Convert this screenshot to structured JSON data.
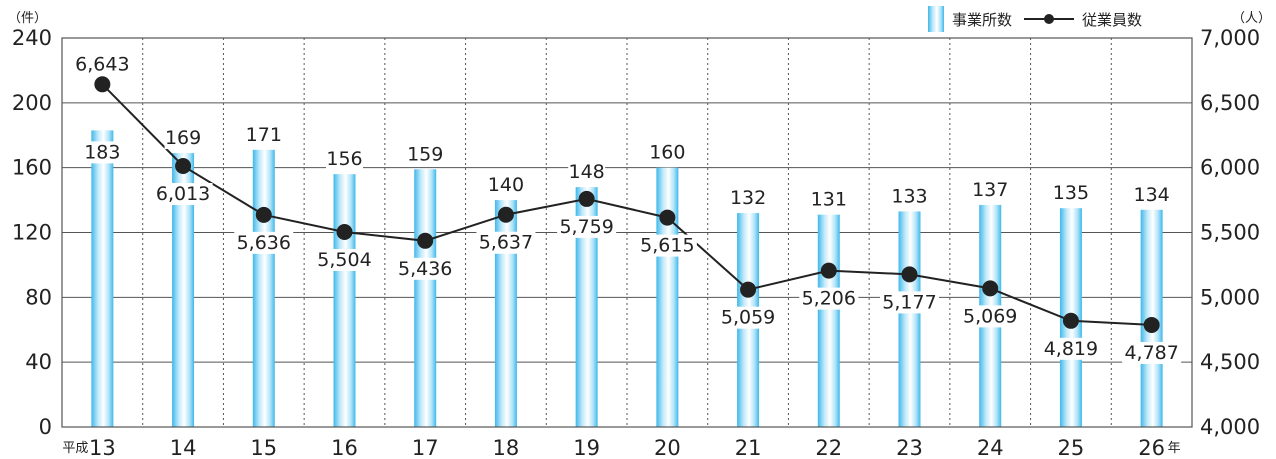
{
  "chart_data": {
    "type": "bar",
    "categories": [
      "13",
      "14",
      "15",
      "16",
      "17",
      "18",
      "19",
      "20",
      "21",
      "22",
      "23",
      "24",
      "25",
      "26"
    ],
    "x_prefix": "平成",
    "x_suffix": "年",
    "y_left": {
      "unit": "（件）",
      "ticks": [
        "0",
        "40",
        "80",
        "120",
        "160",
        "200",
        "240"
      ],
      "ylim": [
        0,
        240
      ]
    },
    "y_right": {
      "unit": "（人）",
      "ticks": [
        "4,000",
        "4,500",
        "5,000",
        "5,500",
        "6,000",
        "6,500",
        "7,000"
      ],
      "ylim": [
        4000,
        7000
      ]
    },
    "series": [
      {
        "name": "事業所数",
        "type": "bar",
        "axis": "left",
        "values": [
          183,
          169,
          171,
          156,
          159,
          140,
          148,
          160,
          132,
          131,
          133,
          137,
          135,
          134
        ],
        "labels": [
          "183",
          "169",
          "171",
          "156",
          "159",
          "140",
          "148",
          "160",
          "132",
          "131",
          "133",
          "137",
          "135",
          "134"
        ]
      },
      {
        "name": "従業員数",
        "type": "line",
        "axis": "right",
        "values": [
          6643,
          6013,
          5636,
          5504,
          5436,
          5637,
          5759,
          5615,
          5059,
          5206,
          5177,
          5069,
          4819,
          4787
        ],
        "labels": [
          "6,643",
          "6,013",
          "5,636",
          "5,504",
          "5,436",
          "5,637",
          "5,759",
          "5,615",
          "5,059",
          "5,206",
          "5,177",
          "5,069",
          "4,819",
          "4,787"
        ]
      }
    ],
    "legend": {
      "position": "top-right",
      "items": [
        "事業所数",
        "従業員数"
      ]
    },
    "grid": {
      "horizontal": true,
      "vertical_dotted": true
    },
    "colors": {
      "bar": "#5bc8ef",
      "line": "#222222",
      "grid": "#555555"
    }
  }
}
